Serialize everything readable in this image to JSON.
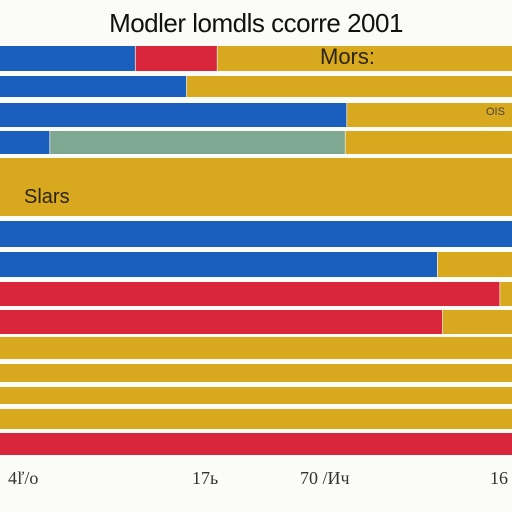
{
  "chart_data": {
    "type": "bar",
    "orientation": "horizontal",
    "stacked": true,
    "title": "Modler lomdls ccorre 2001",
    "annotations": [
      "Mors:",
      "OIS",
      "Slars"
    ],
    "x_ticks": [
      "4ľ/o",
      "17ь",
      "70 /Ич",
      "16"
    ],
    "xlim": [
      0,
      100
    ],
    "grid": false,
    "legend": "none",
    "colors": {
      "blue": "#1b5fbe",
      "red": "#d9263b",
      "yellow": "#d8a81e",
      "teal": "#7fa893"
    },
    "rows": [
      [
        {
          "c": "blue",
          "v": 26.5
        },
        {
          "c": "red",
          "v": 16.0
        },
        {
          "c": "yellow",
          "v": 57.5
        }
      ],
      [
        {
          "c": "blue",
          "v": 36.5
        },
        {
          "c": "yellow",
          "v": 63.5
        }
      ],
      [
        {
          "c": "blue",
          "v": 67.8
        },
        {
          "c": "yellow",
          "v": 32.2
        }
      ],
      [
        {
          "c": "blue",
          "v": 9.8
        },
        {
          "c": "teal",
          "v": 57.7
        },
        {
          "c": "yellow",
          "v": 32.5
        }
      ],
      [
        {
          "c": "yellow",
          "v": 100
        }
      ],
      [
        {
          "c": "blue",
          "v": 100
        }
      ],
      [
        {
          "c": "blue",
          "v": 85.5
        },
        {
          "c": "yellow",
          "v": 14.5
        }
      ],
      [
        {
          "c": "red",
          "v": 97.7
        },
        {
          "c": "yellow",
          "v": 2.3
        }
      ],
      [
        {
          "c": "red",
          "v": 86.5
        },
        {
          "c": "yellow",
          "v": 13.5
        }
      ],
      [
        {
          "c": "yellow",
          "v": 100
        }
      ],
      [
        {
          "c": "yellow",
          "v": 100
        }
      ],
      [
        {
          "c": "yellow",
          "v": 100
        }
      ],
      [
        {
          "c": "yellow",
          "v": 100
        }
      ],
      [
        {
          "c": "red",
          "v": 100
        }
      ]
    ]
  }
}
